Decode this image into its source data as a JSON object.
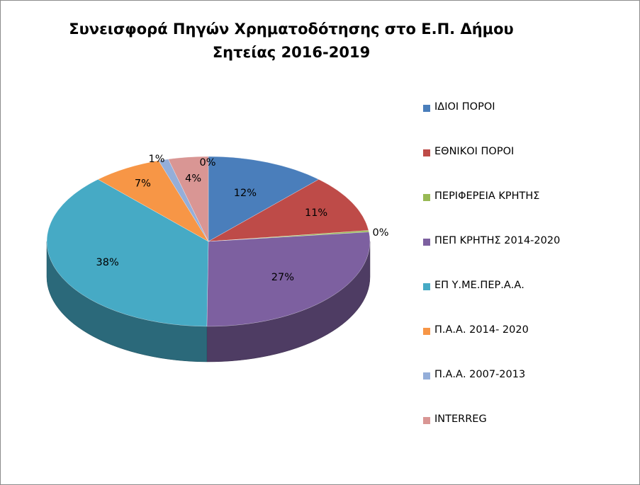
{
  "chart_data": {
    "type": "pie",
    "title": "Συνεισφορά Πηγών Χρηματοδότησης στο Ε.Π. Δήμου Σητείας 2016-2019",
    "title_lines": [
      "Συνεισφορά Πηγών Χρηματοδότησης στο Ε.Π. Δήμου",
      "Σητείας 2016-2019"
    ],
    "style": "3d",
    "legend_position": "right",
    "categories": [
      "ΙΔΙΟΙ ΠΟΡΟΙ",
      "ΕΘΝΙΚΟΙ ΠΟΡΟΙ",
      "ΠΕΡΙΦΕΡΕΙΑ ΚΡΗΤΗΣ",
      "ΠΕΠ ΚΡΗΤΗΣ 2014-2020",
      "ΕΠ Υ.ΜΕ.ΠΕΡ.Α.Α.",
      "Π.Α.Α. 2014- 2020",
      "Π.Α.Α. 2007-2013",
      "INTERREG"
    ],
    "values": [
      12,
      11,
      0.3,
      27,
      38,
      7,
      1,
      4
    ],
    "data_labels": [
      "12%",
      "11%",
      "0%",
      "27%",
      "38%",
      "7%",
      "1%",
      "4%"
    ],
    "extra_label": "0%",
    "colors": [
      "#4a7ebb",
      "#be4b48",
      "#98b954",
      "#7d60a0",
      "#46aac5",
      "#f79646",
      "#94aed9",
      "#d99694"
    ]
  }
}
